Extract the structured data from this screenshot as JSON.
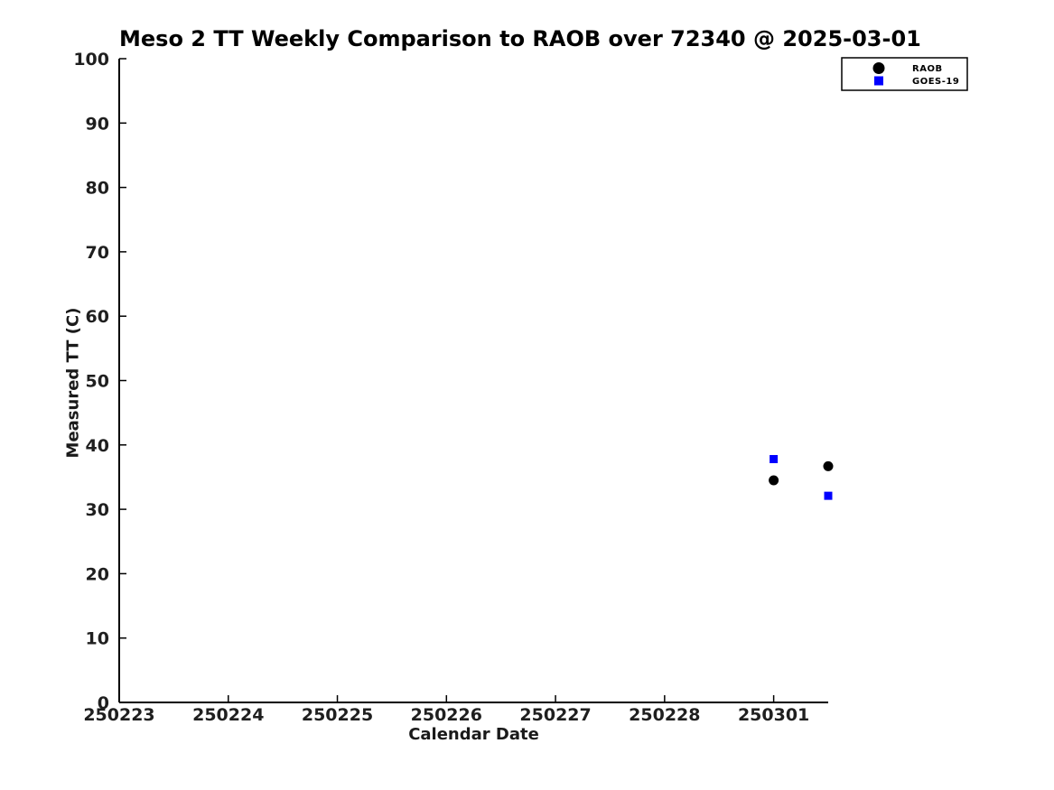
{
  "chart_data": {
    "type": "scatter",
    "title": "Meso 2 TT Weekly Comparison to RAOB over 72340 @ 2025-03-01",
    "xlabel": "Calendar Date",
    "ylabel": "Measured TT (C)",
    "ylim": [
      0,
      100
    ],
    "y_ticks": [
      0,
      10,
      20,
      30,
      40,
      50,
      60,
      70,
      80,
      90,
      100
    ],
    "x_range_days": [
      0,
      6.5
    ],
    "x_ticks": [
      {
        "label": "250223",
        "day": 0
      },
      {
        "label": "250224",
        "day": 1
      },
      {
        "label": "250225",
        "day": 2
      },
      {
        "label": "250226",
        "day": 3
      },
      {
        "label": "250227",
        "day": 4
      },
      {
        "label": "250228",
        "day": 5
      },
      {
        "label": "250301",
        "day": 6
      }
    ],
    "grid": false,
    "axis_color": "#000000",
    "background_color": "#ffffff",
    "legend": {
      "position": "top-right",
      "border_color": "#000000",
      "entries": [
        "RAOB",
        "GOES-19"
      ]
    },
    "series": [
      {
        "name": "RAOB",
        "marker": "circle",
        "color": "#000000",
        "points": [
          {
            "day": 6.0,
            "y": 34.5
          },
          {
            "day": 6.5,
            "y": 36.7
          }
        ]
      },
      {
        "name": "GOES-19",
        "marker": "square",
        "color": "#0000ff",
        "points": [
          {
            "day": 6.0,
            "y": 37.8
          },
          {
            "day": 6.5,
            "y": 32.1
          }
        ]
      }
    ]
  }
}
